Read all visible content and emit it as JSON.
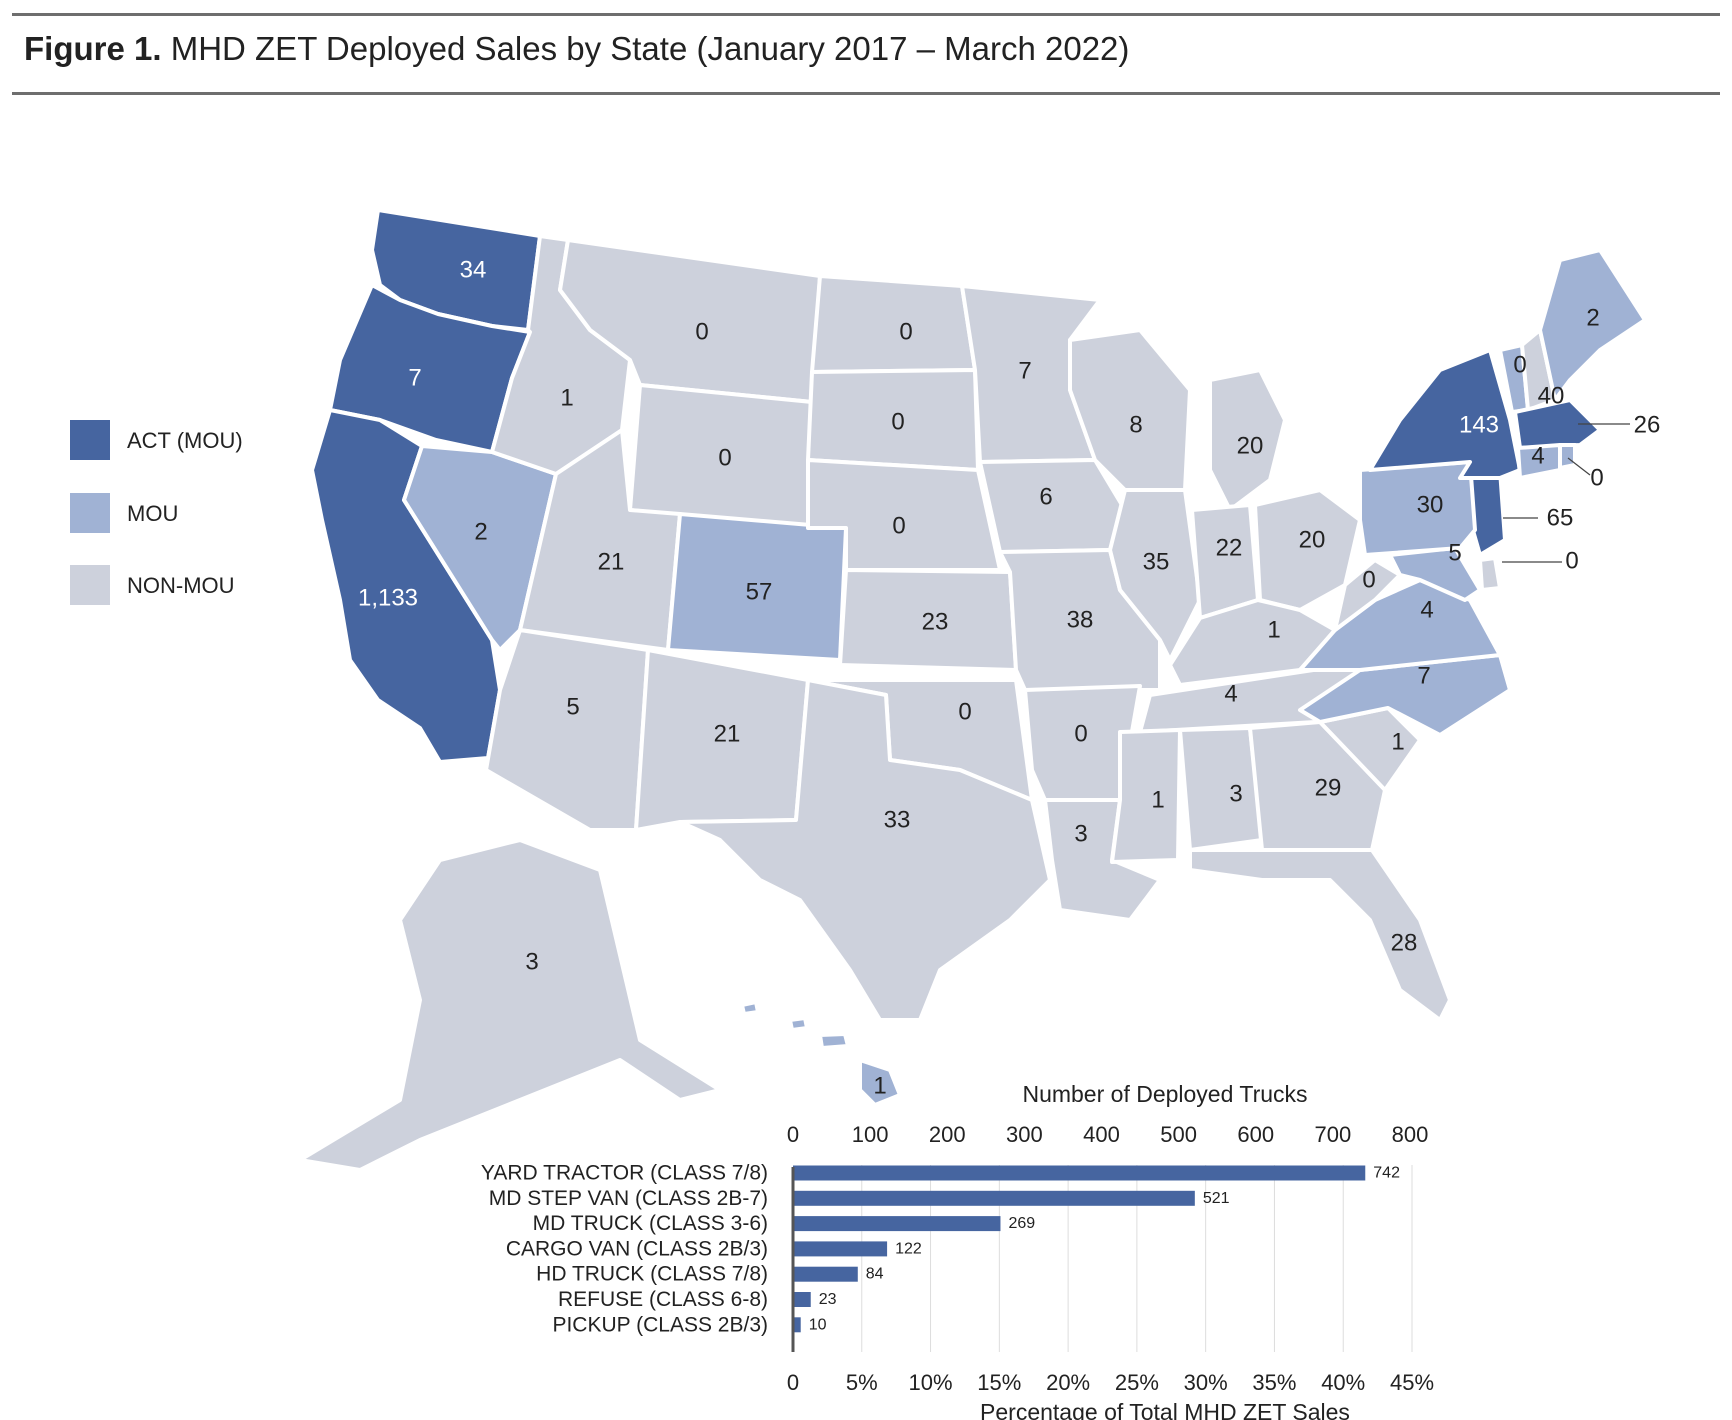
{
  "header": {
    "figure_label": "Figure 1.",
    "title": "MHD ZET Deployed Sales by State (January 2017 – March 2022)"
  },
  "legend": [
    {
      "label": "ACT (MOU)",
      "color": "#4665a0"
    },
    {
      "label": "MOU",
      "color": "#a0b2d4"
    },
    {
      "label": "NON-MOU",
      "color": "#cdd1dc"
    }
  ],
  "chart_data": [
    {
      "type": "map",
      "title": "MHD ZET Deployed Sales by State (January 2017 – March 2022)",
      "categories": {
        "ACT (MOU)": "#4665a0",
        "MOU": "#a0b2d4",
        "NON-MOU": "#cdd1dc"
      },
      "states": [
        {
          "state": "WA",
          "value": "34",
          "category": "ACT (MOU)"
        },
        {
          "state": "OR",
          "value": "7",
          "category": "ACT (MOU)"
        },
        {
          "state": "CA",
          "value": "1,133",
          "category": "ACT (MOU)"
        },
        {
          "state": "NV",
          "value": "2",
          "category": "MOU"
        },
        {
          "state": "ID",
          "value": "1",
          "category": "NON-MOU"
        },
        {
          "state": "MT",
          "value": "0",
          "category": "NON-MOU"
        },
        {
          "state": "WY",
          "value": "0",
          "category": "NON-MOU"
        },
        {
          "state": "UT",
          "value": "21",
          "category": "NON-MOU"
        },
        {
          "state": "CO",
          "value": "57",
          "category": "MOU"
        },
        {
          "state": "AZ",
          "value": "5",
          "category": "NON-MOU"
        },
        {
          "state": "NM",
          "value": "21",
          "category": "NON-MOU"
        },
        {
          "state": "ND",
          "value": "0",
          "category": "NON-MOU"
        },
        {
          "state": "SD",
          "value": "0",
          "category": "NON-MOU"
        },
        {
          "state": "NE",
          "value": "0",
          "category": "NON-MOU"
        },
        {
          "state": "KS",
          "value": "23",
          "category": "NON-MOU"
        },
        {
          "state": "OK",
          "value": "0",
          "category": "NON-MOU"
        },
        {
          "state": "TX",
          "value": "33",
          "category": "NON-MOU"
        },
        {
          "state": "MN",
          "value": "7",
          "category": "NON-MOU"
        },
        {
          "state": "IA",
          "value": "6",
          "category": "NON-MOU"
        },
        {
          "state": "MO",
          "value": "38",
          "category": "NON-MOU"
        },
        {
          "state": "AR",
          "value": "0",
          "category": "NON-MOU"
        },
        {
          "state": "LA",
          "value": "3",
          "category": "NON-MOU"
        },
        {
          "state": "WI",
          "value": "8",
          "category": "NON-MOU"
        },
        {
          "state": "IL",
          "value": "35",
          "category": "NON-MOU"
        },
        {
          "state": "MI",
          "value": "20",
          "category": "NON-MOU"
        },
        {
          "state": "IN",
          "value": "22",
          "category": "NON-MOU"
        },
        {
          "state": "OH",
          "value": "20",
          "category": "NON-MOU"
        },
        {
          "state": "KY",
          "value": "1",
          "category": "NON-MOU"
        },
        {
          "state": "TN",
          "value": "4",
          "category": "NON-MOU"
        },
        {
          "state": "MS",
          "value": "1",
          "category": "NON-MOU"
        },
        {
          "state": "AL",
          "value": "3",
          "category": "NON-MOU"
        },
        {
          "state": "GA",
          "value": "29",
          "category": "NON-MOU"
        },
        {
          "state": "FL",
          "value": "28",
          "category": "NON-MOU"
        },
        {
          "state": "SC",
          "value": "1",
          "category": "NON-MOU"
        },
        {
          "state": "NC",
          "value": "7",
          "category": "MOU"
        },
        {
          "state": "VA",
          "value": "4",
          "category": "MOU"
        },
        {
          "state": "WV",
          "value": "0",
          "category": "NON-MOU"
        },
        {
          "state": "MD",
          "value": "5",
          "category": "MOU"
        },
        {
          "state": "DE",
          "value": "0",
          "category": "NON-MOU"
        },
        {
          "state": "NJ",
          "value": "65",
          "category": "ACT (MOU)"
        },
        {
          "state": "PA",
          "value": "30",
          "category": "MOU"
        },
        {
          "state": "NY",
          "value": "143",
          "category": "ACT (MOU)"
        },
        {
          "state": "VT",
          "value": "0",
          "category": "MOU"
        },
        {
          "state": "NH",
          "value": "40",
          "category": "NON-MOU"
        },
        {
          "state": "ME",
          "value": "2",
          "category": "MOU"
        },
        {
          "state": "MA",
          "value": "26",
          "category": "ACT (MOU)"
        },
        {
          "state": "CT",
          "value": "4",
          "category": "MOU"
        },
        {
          "state": "RI",
          "value": "0",
          "category": "MOU"
        },
        {
          "state": "AK",
          "value": "3",
          "category": "NON-MOU"
        },
        {
          "state": "HI",
          "value": "1",
          "category": "MOU"
        }
      ]
    },
    {
      "type": "bar",
      "orientation": "horizontal",
      "xlabel": "Number of Deployed Trucks",
      "secondary_xlabel": "Percentage of Total MHD ZET Sales",
      "categories": [
        "YARD TRACTOR (CLASS 7/8)",
        "MD STEP VAN (CLASS 2B-7)",
        "MD TRUCK (CLASS 3-6)",
        "CARGO VAN (CLASS 2B/3)",
        "HD TRUCK (CLASS 7/8)",
        "REFUSE (CLASS 6-8)",
        "PICKUP (CLASS 2B/3)"
      ],
      "values": [
        742,
        521,
        269,
        122,
        84,
        23,
        10
      ],
      "top_axis_ticks": [
        "0",
        "100",
        "200",
        "300",
        "400",
        "500",
        "600",
        "700",
        "800"
      ],
      "bottom_axis_ticks": [
        "0",
        "5%",
        "10%",
        "15%",
        "20%",
        "25%",
        "30%",
        "35%",
        "40%",
        "45%"
      ],
      "xlim": [
        0,
        800
      ],
      "bar_color": "#4665a0",
      "grid": true
    }
  ]
}
